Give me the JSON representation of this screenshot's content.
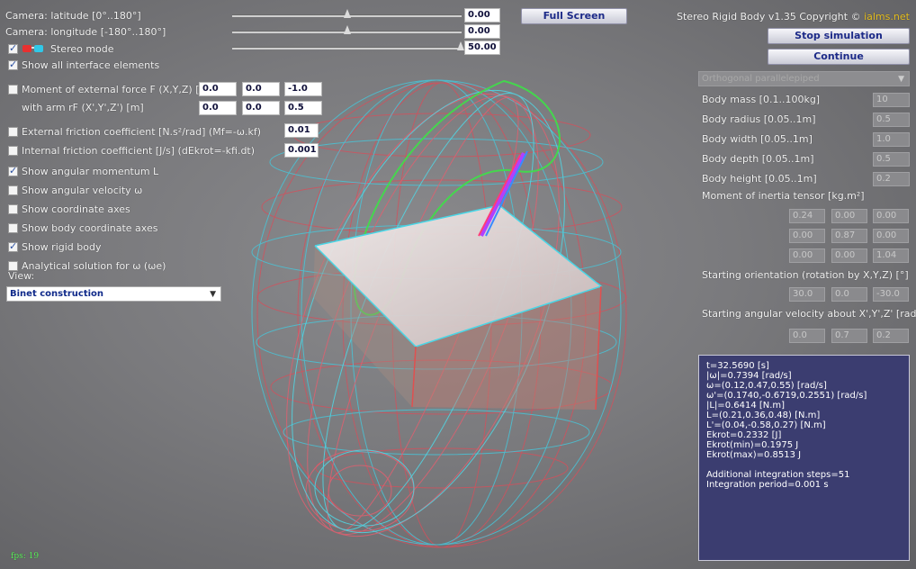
{
  "camera": {
    "latitude_label": "Camera: latitude [0°..180°]",
    "latitude_value": "0.00",
    "latitude_fraction": 0.5,
    "longitude_label": "Camera: longitude [-180°..180°]",
    "longitude_value": "0.00",
    "longitude_fraction": 0.5
  },
  "stereo": {
    "label": "Stereo mode",
    "checked": true,
    "value": "50.00",
    "fraction": 1.0
  },
  "show_all": {
    "label": "Show all interface elements",
    "checked": true
  },
  "full_screen_label": "Full Screen",
  "copyright_prefix": "Stereo Rigid Body v1.35 Copyright © ",
  "copyright_site": "ialms.net",
  "stop_label": "Stop simulation",
  "continue_label": "Continue",
  "body_type_select": "Orthogonal parallelepiped",
  "external_force": {
    "label": "Moment of external force F (X,Y,Z) [N]",
    "values": [
      "0.0",
      "0.0",
      "-1.0"
    ],
    "arm_label": "with arm rF (X',Y',Z') [m]",
    "arm_values": [
      "0.0",
      "0.0",
      "0.5"
    ]
  },
  "ext_friction": {
    "label": "External friction coefficient [N.s²/rad] (Mf=-ω.kf)",
    "value": "0.01"
  },
  "int_friction": {
    "label": "Internal friction coefficient [J/s] (dEkrot=-kfi.dt)",
    "value": "0.001"
  },
  "checkboxes": [
    {
      "label": "Show angular momentum L",
      "checked": true
    },
    {
      "label": "Show angular velocity ω",
      "checked": false
    },
    {
      "label": "Show coordinate axes",
      "checked": false
    },
    {
      "label": "Show body coordinate axes",
      "checked": false
    },
    {
      "label": "Show rigid body",
      "checked": true
    },
    {
      "label": "Analytical solution for ω (ωe)",
      "checked": false
    }
  ],
  "view_label": "View:",
  "view_select": "Binet construction",
  "params": [
    {
      "label": "Body mass [0.1..100kg]",
      "value": "10"
    },
    {
      "label": "Body radius [0.05..1m]",
      "value": "0.5"
    },
    {
      "label": "Body width [0.05..1m]",
      "value": "1.0"
    },
    {
      "label": "Body depth [0.05..1m]",
      "value": "0.5"
    },
    {
      "label": "Body height [0.05..1m]",
      "value": "0.2"
    }
  ],
  "inertia_label": "Moment of inertia tensor [kg.m²]",
  "inertia": [
    [
      "0.24",
      "0.00",
      "0.00"
    ],
    [
      "0.00",
      "0.87",
      "0.00"
    ],
    [
      "0.00",
      "0.00",
      "1.04"
    ]
  ],
  "orientation_label": "Starting orientation (rotation by X,Y,Z) [°]",
  "orientation": [
    "30.0",
    "0.0",
    "-30.0"
  ],
  "angvel_label": "Starting angular velocity about X',Y',Z' [rad/s]",
  "angvel": [
    "0.0",
    "0.7",
    "0.2"
  ],
  "info": [
    "t=32.5690 [s]",
    "|ω|=0.7394 [rad/s]",
    "ω=(0.12,0.47,0.55) [rad/s]",
    "ω'=(0.1740,-0.6719,0.2551) [rad/s]",
    "|L|=0.6414 [N.m]",
    "L=(0.21,0.36,0.48) [N.m]",
    "L'=(0.04,-0.58,0.27) [N.m]",
    "Ekrot=0.2332 [J]",
    "Ekrot(min)=0.1975 J",
    "Ekrot(max)=0.8513 J",
    "",
    "Additional integration steps=51",
    "Integration period=0.001 s"
  ],
  "fps": "fps: 19",
  "colors": {
    "red": "#e0505a",
    "cyan": "#3fd8e8",
    "green": "#44e040",
    "magenta": "#d030ff",
    "panel": "#3b3d70"
  }
}
